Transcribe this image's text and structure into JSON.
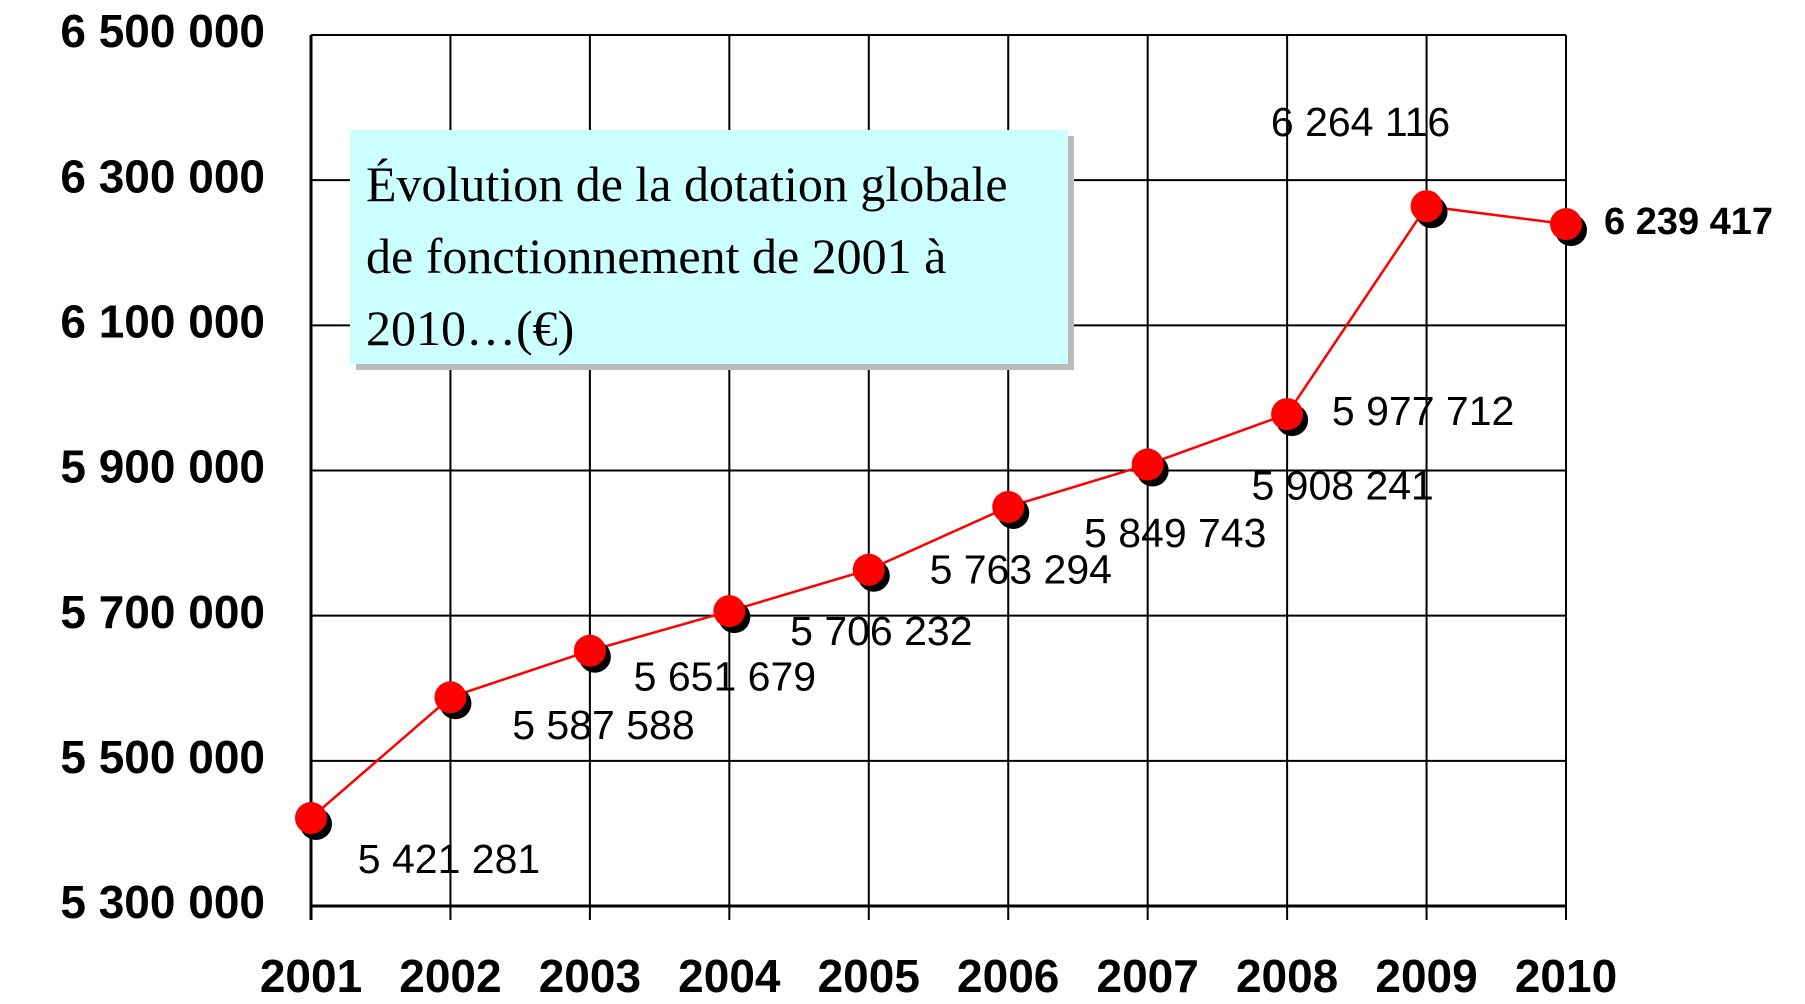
{
  "chart_data": {
    "type": "line",
    "title": "Évolution de la dotation globale de fonctionnement de 2001 à 2010…(€)",
    "categories": [
      "2001",
      "2002",
      "2003",
      "2004",
      "2005",
      "2006",
      "2007",
      "2008",
      "2009",
      "2010"
    ],
    "series": [
      {
        "name": null,
        "color": "#ff0000",
        "values": [
          5421281,
          5587588,
          5651679,
          5706232,
          5763294,
          5849743,
          5908241,
          5977712,
          6264116,
          6239417
        ],
        "value_labels": [
          "5 421 281",
          "5 587 588",
          "5 651 679",
          "5 706 232",
          "5 763 294",
          "5 849 743",
          "5 908 241",
          "5 977 712",
          "6 264 116",
          "6 239 417"
        ]
      }
    ],
    "ylim": [
      5300000,
      6500000
    ],
    "yticks": [
      {
        "value": 5300000,
        "label": "5 300 000"
      },
      {
        "value": 5500000,
        "label": "5 500 000"
      },
      {
        "value": 5700000,
        "label": "5 700 000"
      },
      {
        "value": 5900000,
        "label": "5 900 000"
      },
      {
        "value": 6100000,
        "label": "6 100 000"
      },
      {
        "value": 6300000,
        "label": "6 300 000"
      },
      {
        "value": 6500000,
        "label": "6 500 000"
      }
    ],
    "grid": true
  }
}
